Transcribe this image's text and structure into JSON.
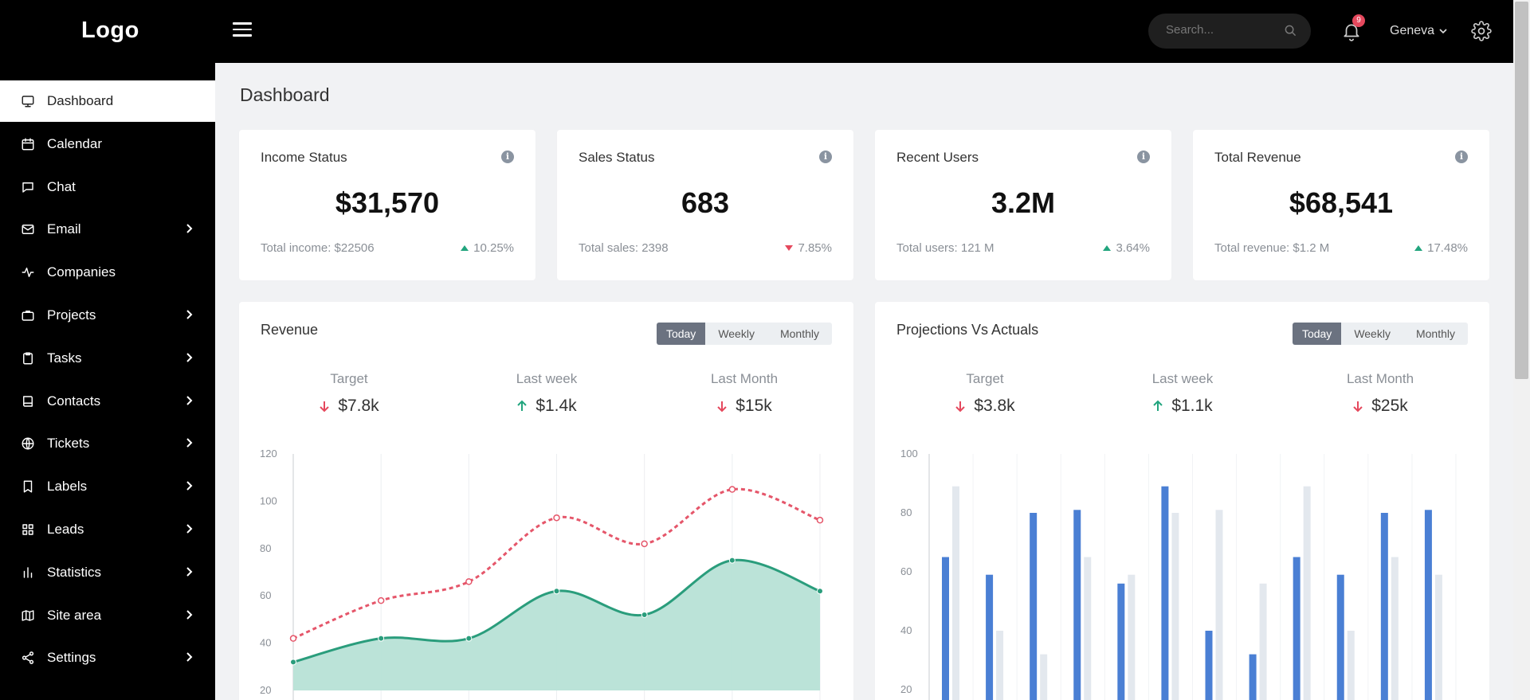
{
  "header": {
    "logo": "Logo",
    "search_placeholder": "Search...",
    "notifications_count": "9",
    "user": "Geneva"
  },
  "sidebar": {
    "items": [
      {
        "label": "Dashboard",
        "icon": "monitor-icon",
        "active": true,
        "expandable": false
      },
      {
        "label": "Calendar",
        "icon": "calendar-icon",
        "active": false,
        "expandable": false
      },
      {
        "label": "Chat",
        "icon": "chat-icon",
        "active": false,
        "expandable": false
      },
      {
        "label": "Email",
        "icon": "mail-icon",
        "active": false,
        "expandable": true
      },
      {
        "label": "Companies",
        "icon": "activity-icon",
        "active": false,
        "expandable": false
      },
      {
        "label": "Projects",
        "icon": "briefcase-icon",
        "active": false,
        "expandable": true
      },
      {
        "label": "Tasks",
        "icon": "clipboard-icon",
        "active": false,
        "expandable": true
      },
      {
        "label": "Contacts",
        "icon": "book-icon",
        "active": false,
        "expandable": true
      },
      {
        "label": "Tickets",
        "icon": "globe-icon",
        "active": false,
        "expandable": true
      },
      {
        "label": "Labels",
        "icon": "bookmark-icon",
        "active": false,
        "expandable": true
      },
      {
        "label": "Leads",
        "icon": "grid-icon",
        "active": false,
        "expandable": true
      },
      {
        "label": "Statistics",
        "icon": "bar-chart-icon",
        "active": false,
        "expandable": true
      },
      {
        "label": "Site area",
        "icon": "map-icon",
        "active": false,
        "expandable": true
      },
      {
        "label": "Settings",
        "icon": "share-icon",
        "active": false,
        "expandable": true
      }
    ]
  },
  "main": {
    "title": "Dashboard",
    "stats": [
      {
        "title": "Income Status",
        "value": "$31,570",
        "sub": "Total income: $22506",
        "change": "10.25%",
        "trend": "up"
      },
      {
        "title": "Sales Status",
        "value": "683",
        "sub": "Total sales: 2398",
        "change": "7.85%",
        "trend": "down"
      },
      {
        "title": "Recent Users",
        "value": "3.2M",
        "sub": "Total users: 121 M",
        "change": "3.64%",
        "trend": "up"
      },
      {
        "title": "Total Revenue",
        "value": "$68,541",
        "sub": "Total revenue: $1.2 M",
        "change": "17.48%",
        "trend": "up"
      }
    ],
    "period_tabs": [
      "Today",
      "Weekly",
      "Monthly"
    ]
  },
  "revenue": {
    "title": "Revenue",
    "kpis": [
      {
        "label": "Target",
        "value": "$7.8k",
        "trend": "down"
      },
      {
        "label": "Last week",
        "value": "$1.4k",
        "trend": "up"
      },
      {
        "label": "Last Month",
        "value": "$15k",
        "trend": "down"
      }
    ]
  },
  "projections": {
    "title": "Projections Vs Actuals",
    "kpis": [
      {
        "label": "Target",
        "value": "$3.8k",
        "trend": "down"
      },
      {
        "label": "Last week",
        "value": "$1.1k",
        "trend": "up"
      },
      {
        "label": "Last Month",
        "value": "$25k",
        "trend": "down"
      }
    ]
  },
  "colors": {
    "up": "#22a57e",
    "down": "#e5485d",
    "area_fill": "#b7e2d6",
    "area_line": "#2a9d7c",
    "dashed_line": "#e5566a",
    "bar_primary": "#4a7fd4",
    "bar_secondary": "#e3e8ee"
  },
  "chart_data": [
    {
      "type": "area",
      "title": "Revenue",
      "xlabel": "",
      "ylabel": "",
      "ylim": [
        20,
        120
      ],
      "yticks": [
        20,
        40,
        60,
        80,
        100,
        120
      ],
      "grid": "vertical",
      "series": [
        {
          "style": "dashed-line",
          "values": [
            42,
            58,
            66,
            93,
            82,
            105,
            92
          ]
        },
        {
          "style": "area",
          "values": [
            32,
            42,
            42,
            62,
            52,
            75,
            62
          ]
        }
      ]
    },
    {
      "type": "bar",
      "title": "Projections Vs Actuals",
      "xlabel": "",
      "ylabel": "",
      "ylim": [
        20,
        100
      ],
      "yticks": [
        20,
        40,
        60,
        80,
        100
      ],
      "grid": "vertical",
      "series": [
        {
          "style": "primary",
          "values": [
            65,
            59,
            80,
            81,
            56,
            89,
            40,
            32,
            65,
            59,
            80,
            81
          ]
        },
        {
          "style": "secondary",
          "values": [
            89,
            40,
            32,
            65,
            59,
            80,
            81,
            56,
            89,
            40,
            65,
            59
          ]
        }
      ]
    }
  ]
}
